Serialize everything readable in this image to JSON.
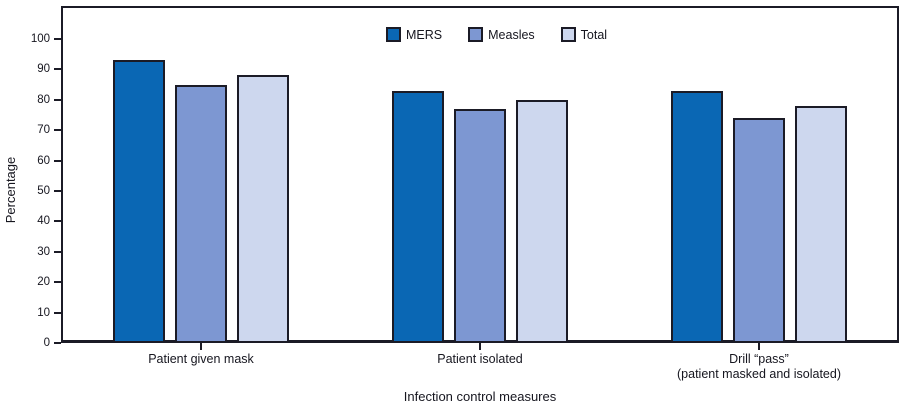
{
  "chart_data": {
    "type": "bar",
    "title": "",
    "xlabel": "Infection control measures",
    "ylabel": "Percentage",
    "categories": [
      "Patient given mask",
      "Patient isolated",
      "Drill “pass”\n(patient masked and isolated)"
    ],
    "series": [
      {
        "name": "MERS",
        "color": "#0a67b4",
        "values": [
          93,
          83,
          83
        ]
      },
      {
        "name": "Measles",
        "color": "#7d97d2",
        "values": [
          85,
          77,
          74
        ]
      },
      {
        "name": "Total",
        "color": "#cdd7ee",
        "values": [
          88,
          80,
          78
        ]
      }
    ],
    "ylim": [
      0,
      100
    ],
    "yticks": [
      0,
      10,
      20,
      30,
      40,
      50,
      60,
      70,
      80,
      90,
      100
    ],
    "grid": false,
    "legend_position": "top-center-inside",
    "axis_color": "#1b1b26",
    "bar_border_color": "#1b1b26"
  }
}
